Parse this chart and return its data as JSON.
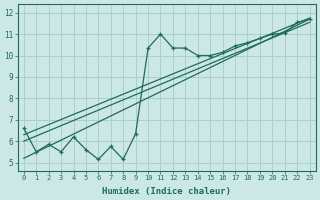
{
  "title": "",
  "xlabel": "Humidex (Indice chaleur)",
  "ylabel": "",
  "background_color": "#cce8e6",
  "grid_color": "#aacfcc",
  "line_color": "#1f6b5e",
  "x_ticks": [
    0,
    1,
    2,
    3,
    4,
    5,
    6,
    7,
    8,
    9,
    10,
    11,
    12,
    13,
    14,
    15,
    16,
    17,
    18,
    19,
    20,
    21,
    22,
    23
  ],
  "y_ticks": [
    5,
    6,
    7,
    8,
    9,
    10,
    11,
    12
  ],
  "ylim": [
    4.6,
    12.4
  ],
  "xlim": [
    -0.5,
    23.5
  ],
  "scatter_x": [
    0,
    1,
    2,
    3,
    4,
    5,
    6,
    7,
    8,
    9,
    10,
    11,
    12,
    13,
    14,
    15,
    16,
    17,
    18,
    19,
    20,
    21,
    22,
    23
  ],
  "scatter_y": [
    6.6,
    5.5,
    5.85,
    5.5,
    6.2,
    5.6,
    5.15,
    5.75,
    5.15,
    6.35,
    10.35,
    11.0,
    10.35,
    10.35,
    10.0,
    10.0,
    10.15,
    10.45,
    10.6,
    10.8,
    11.0,
    11.05,
    11.55,
    11.7
  ],
  "line1_x": [
    0,
    23
  ],
  "line1_y": [
    5.2,
    11.7
  ],
  "line2_x": [
    0,
    23
  ],
  "line2_y": [
    6.3,
    11.75
  ],
  "line3_x": [
    0,
    23
  ],
  "line3_y": [
    6.0,
    11.55
  ]
}
